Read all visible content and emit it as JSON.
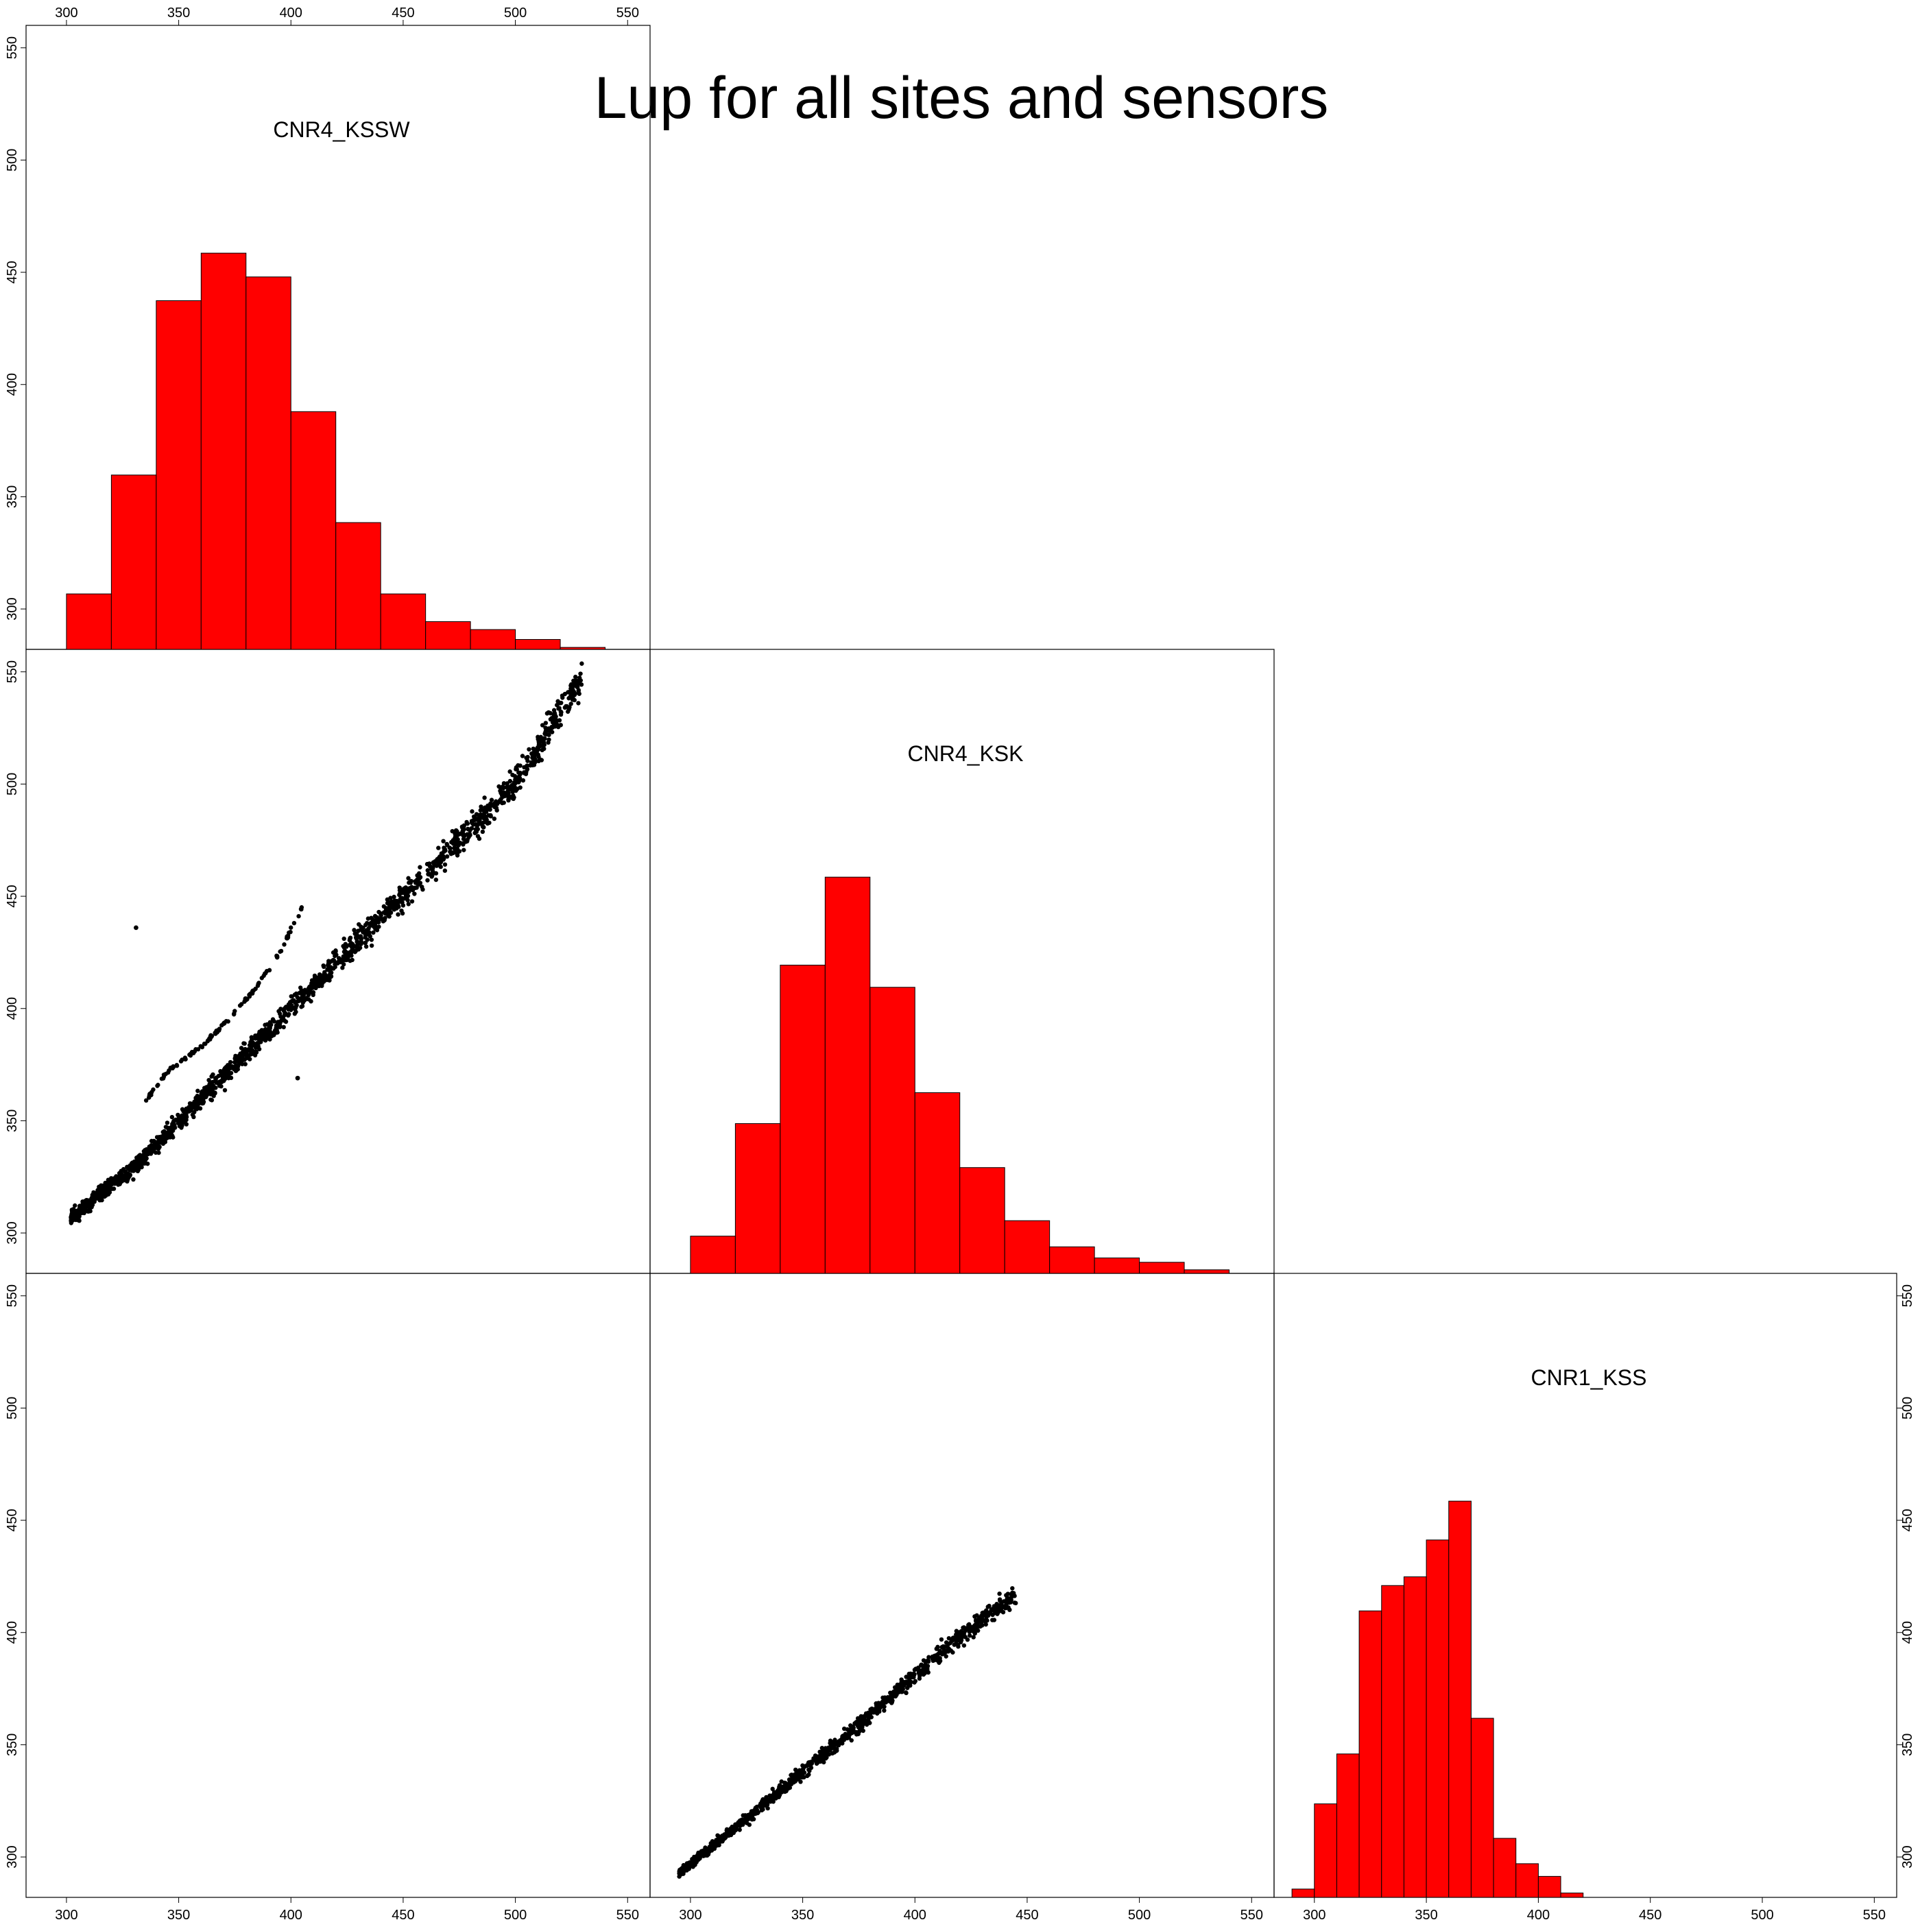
{
  "title": "Lup for all sites and sensors",
  "axis": {
    "range": [
      282,
      560
    ],
    "ticks": [
      300,
      350,
      400,
      450,
      500,
      550
    ]
  },
  "variables": [
    "CNR4_KSSW",
    "CNR4_KSK",
    "CNR1_KSS"
  ],
  "chart_data": [
    {
      "type": "bar",
      "title": "CNR4_KSSW",
      "panel": "diagonal-1",
      "bin_edges": [
        300,
        320,
        340,
        360,
        380,
        400,
        420,
        440,
        460,
        480,
        500,
        520,
        540
      ],
      "values": [
        0.14,
        0.44,
        0.88,
        1.0,
        0.94,
        0.6,
        0.32,
        0.14,
        0.07,
        0.05,
        0.025,
        0.005
      ]
    },
    {
      "type": "bar",
      "title": "CNR4_KSK",
      "panel": "diagonal-2",
      "bin_edges": [
        300,
        320,
        340,
        360,
        380,
        400,
        420,
        440,
        460,
        480,
        500,
        520,
        540
      ],
      "values": [
        0.094,
        0.378,
        0.778,
        1.0,
        0.722,
        0.456,
        0.267,
        0.133,
        0.067,
        0.039,
        0.028,
        0.009
      ]
    },
    {
      "type": "bar",
      "title": "CNR1_KSS",
      "panel": "diagonal-3",
      "bin_edges": [
        290,
        300,
        310,
        320,
        330,
        340,
        350,
        360,
        370,
        380,
        390,
        400,
        410,
        420
      ],
      "values": [
        0.021,
        0.236,
        0.362,
        0.723,
        0.787,
        0.809,
        0.902,
        1.0,
        0.452,
        0.149,
        0.085,
        0.053,
        0.011
      ]
    },
    {
      "type": "scatter",
      "panel": "row2-col1",
      "x_variable": "CNR4_KSSW",
      "y_variable": "CNR4_KSK",
      "trend": [
        [
          302,
          307
        ],
        [
          330,
          329
        ],
        [
          360,
          360
        ],
        [
          400,
          400
        ],
        [
          450,
          450
        ],
        [
          500,
          500
        ],
        [
          530,
          549
        ]
      ],
      "spread": 10,
      "outliers": [
        [
          331,
          436
        ],
        [
          403,
          369
        ]
      ],
      "secondary_band": [
        [
          334,
          357
        ],
        [
          345,
          372
        ],
        [
          360,
          383
        ],
        [
          372,
          395
        ],
        [
          385,
          410
        ],
        [
          395,
          425
        ],
        [
          405,
          445
        ]
      ]
    },
    {
      "type": "scatter",
      "panel": "row3-col2",
      "x_variable": "CNR4_KSK",
      "y_variable": "CNR1_KSS",
      "trend": [
        [
          295,
          293
        ],
        [
          320,
          313
        ],
        [
          350,
          338
        ],
        [
          380,
          363
        ],
        [
          410,
          390
        ],
        [
          445,
          417
        ]
      ],
      "spread": 6
    }
  ]
}
